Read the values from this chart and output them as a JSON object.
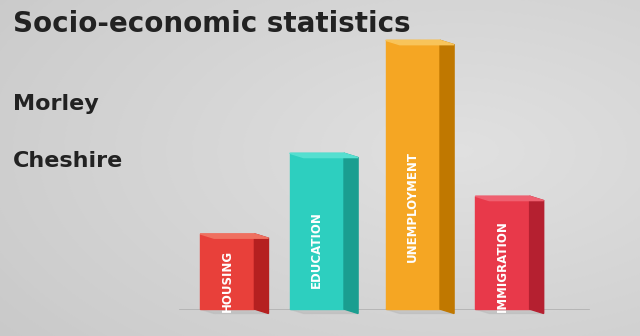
{
  "title_line1": "Socio-economic statistics",
  "title_line2": "Morley",
  "title_line3": "Cheshire",
  "categories": [
    "HOUSING",
    "EDUCATION",
    "UNEMPLOYMENT",
    "IMMIGRATION"
  ],
  "values": [
    0.28,
    0.58,
    1.0,
    0.42
  ],
  "bar_colors_front": [
    "#e8403a",
    "#2dcfbf",
    "#f5a623",
    "#e8394a"
  ],
  "bar_colors_side": [
    "#b52020",
    "#1a9e90",
    "#c07800",
    "#b52030"
  ],
  "bar_colors_top": [
    "#ef7060",
    "#55dfd0",
    "#f8c45a",
    "#ef6070"
  ],
  "background_color": "#d8d8d8",
  "text_color": "#222222",
  "title_fontsize": 20,
  "sub_fontsize": 16,
  "label_fontsize": 8.5
}
